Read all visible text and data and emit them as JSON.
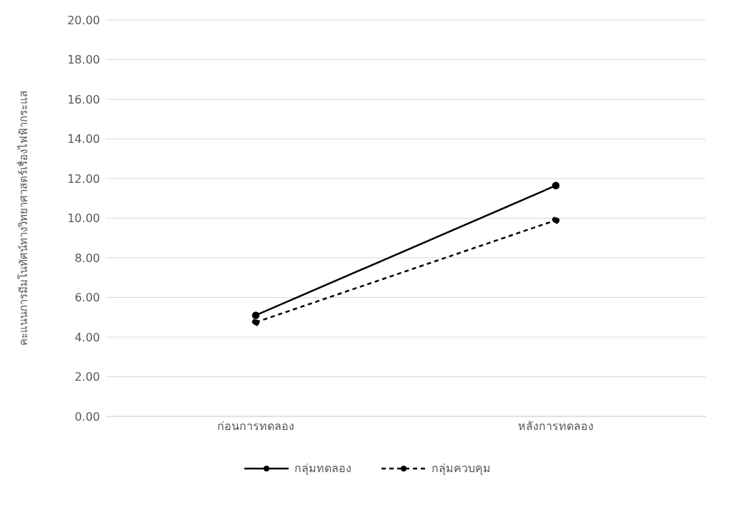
{
  "chart_data": {
    "type": "line",
    "ylabel": "คะแนนการมีมโนทัศน์ทางวิทยาศาสตร์เรื่องไฟฟ้ากระแส",
    "categories": [
      "ก่อนการทดลอง",
      "หลังการทดลอง"
    ],
    "series": [
      {
        "name": "กลุ่มทดลอง",
        "color": "#000000",
        "values": [
          5.1,
          11.65
        ],
        "line_style": "solid"
      },
      {
        "name": "กลุ่มควบคุม",
        "color": "#000000",
        "values": [
          4.75,
          9.9
        ],
        "line_style": "dashed"
      }
    ],
    "ylim": [
      0,
      20
    ],
    "yticks": [
      {
        "value": 0,
        "label": "0.00"
      },
      {
        "value": 2,
        "label": "2.00"
      },
      {
        "value": 4,
        "label": "4.00"
      },
      {
        "value": 6,
        "label": "6.00"
      },
      {
        "value": 8,
        "label": "8.00"
      },
      {
        "value": 10,
        "label": "10.00"
      },
      {
        "value": 12,
        "label": "12.00"
      },
      {
        "value": 14,
        "label": "14.00"
      },
      {
        "value": 16,
        "label": "16.00"
      },
      {
        "value": 18,
        "label": "18.00"
      },
      {
        "value": 20,
        "label": "20.00"
      }
    ],
    "grid": "y",
    "legend": "bottom",
    "marker": "circle"
  }
}
